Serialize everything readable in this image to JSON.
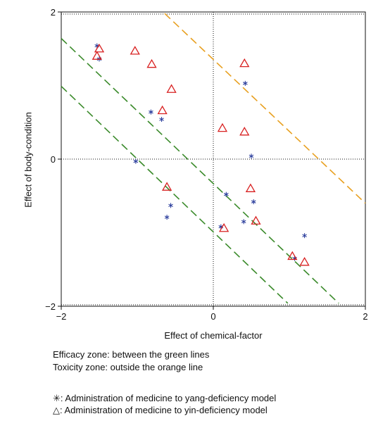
{
  "chart_data": {
    "type": "scatter",
    "xlabel": "Effect of chemical-factor",
    "ylabel": "Effect of body-condition",
    "xlim": [
      -2,
      2
    ],
    "ylim": [
      -2,
      2
    ],
    "x_ticks": [
      "−2",
      "0",
      "2"
    ],
    "y_ticks": [
      "2",
      "0",
      "−2"
    ],
    "reference_lines": [
      "x = 0",
      "y = 0"
    ],
    "grid": false,
    "series": [
      {
        "name": "yang-deficiency model",
        "marker": "asterisk",
        "color": "#2a3d9c",
        "points": [
          [
            -1.53,
            1.54
          ],
          [
            -1.5,
            1.36
          ],
          [
            -0.82,
            0.64
          ],
          [
            -0.68,
            0.54
          ],
          [
            -1.02,
            -0.03
          ],
          [
            -0.56,
            -0.63
          ],
          [
            -0.61,
            -0.79
          ],
          [
            0.17,
            -0.48
          ],
          [
            0.1,
            -0.92
          ],
          [
            0.4,
            -0.85
          ],
          [
            0.53,
            -0.58
          ],
          [
            0.5,
            0.04
          ],
          [
            0.42,
            1.03
          ],
          [
            1.07,
            -1.35
          ],
          [
            1.2,
            -1.04
          ]
        ]
      },
      {
        "name": "yin-deficiency model",
        "marker": "triangle",
        "color": "#d82020",
        "points": [
          [
            -1.53,
            1.4
          ],
          [
            -1.5,
            1.5
          ],
          [
            -1.03,
            1.47
          ],
          [
            -0.81,
            1.29
          ],
          [
            -0.55,
            0.95
          ],
          [
            -0.67,
            0.66
          ],
          [
            -0.61,
            -0.38
          ],
          [
            0.12,
            0.42
          ],
          [
            0.41,
            1.3
          ],
          [
            0.41,
            0.37
          ],
          [
            0.49,
            -0.4
          ],
          [
            0.56,
            -0.84
          ],
          [
            0.14,
            -0.94
          ],
          [
            1.04,
            -1.32
          ],
          [
            1.2,
            -1.4
          ]
        ]
      }
    ],
    "lines": [
      {
        "name": "green-upper",
        "color": "#3a8a2a",
        "from": [
          -2,
          1.64
        ],
        "to": [
          1.65,
          -1.96
        ]
      },
      {
        "name": "green-lower",
        "color": "#3a8a2a",
        "from": [
          -2,
          0.99
        ],
        "to": [
          0.98,
          -1.96
        ]
      },
      {
        "name": "orange",
        "color": "#e8a020",
        "from": [
          -0.64,
          1.98
        ],
        "to": [
          2,
          -0.6
        ]
      }
    ]
  },
  "annotations": {
    "efficacy": "Efficacy zone: between the green lines",
    "toxicity": "Toxicity zone: outside the orange line",
    "legend_yang": "✳: Administration of medicine to yang-deficiency model",
    "legend_yin": "△: Administration of medicine to yin-deficiency model"
  }
}
